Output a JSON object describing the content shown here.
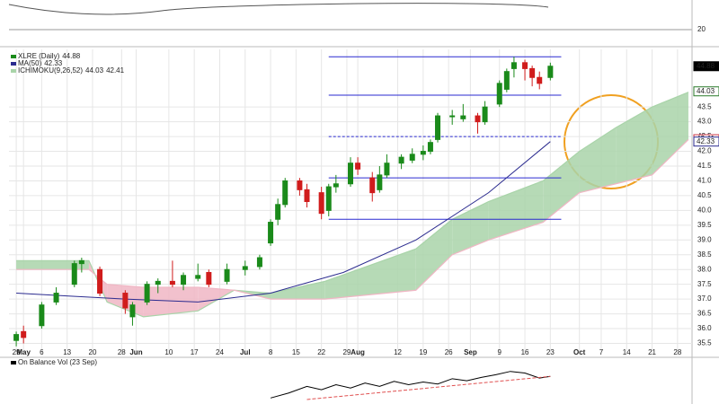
{
  "chart_data": {
    "type": "candlestick",
    "legend": {
      "symbol": "XLRE (Daily)",
      "last": 44.88,
      "ma_name": "MA(50)",
      "ma_last": 42.33,
      "ichimoku_name": "ICHIMOKU(9,26,52)",
      "ichimoku_a": 44.03,
      "ichimoku_b": 42.41
    },
    "xlim": [
      -2,
      186
    ],
    "xticks": [
      {
        "value": 0,
        "label": "29"
      },
      {
        "value": 2,
        "label": "May"
      },
      {
        "value": 7,
        "label": "6"
      },
      {
        "value": 14,
        "label": "13"
      },
      {
        "value": 21,
        "label": "20"
      },
      {
        "value": 29,
        "label": "28"
      },
      {
        "value": 33,
        "label": "Jun"
      },
      {
        "value": 42,
        "label": "10"
      },
      {
        "value": 49,
        "label": "17"
      },
      {
        "value": 56,
        "label": "24"
      },
      {
        "value": 63,
        "label": "Jul"
      },
      {
        "value": 70,
        "label": "8"
      },
      {
        "value": 77,
        "label": "15"
      },
      {
        "value": 84,
        "label": "22"
      },
      {
        "value": 91,
        "label": "29"
      },
      {
        "value": 94,
        "label": "Aug"
      },
      {
        "value": 105,
        "label": "12"
      },
      {
        "value": 112,
        "label": "19"
      },
      {
        "value": 119,
        "label": "26"
      },
      {
        "value": 125,
        "label": "Sep"
      },
      {
        "value": 133,
        "label": "9"
      },
      {
        "value": 140,
        "label": "16"
      },
      {
        "value": 147,
        "label": "23"
      },
      {
        "value": 155,
        "label": "Oct"
      },
      {
        "value": 161,
        "label": "7"
      },
      {
        "value": 168,
        "label": "14"
      },
      {
        "value": 175,
        "label": "21"
      },
      {
        "value": 182,
        "label": "28"
      }
    ],
    "ylim": [
      35.12,
      45.45
    ],
    "yticks": [
      {
        "value": 35.5,
        "label": "35.5"
      },
      {
        "value": 36,
        "label": "36.0"
      },
      {
        "value": 36.5,
        "label": "36.5"
      },
      {
        "value": 37,
        "label": "37.0"
      },
      {
        "value": 37.5,
        "label": "37.5"
      },
      {
        "value": 38,
        "label": "38.0"
      },
      {
        "value": 38.5,
        "label": "38.5"
      },
      {
        "value": 39,
        "label": "39.0"
      },
      {
        "value": 39.5,
        "label": "39.5"
      },
      {
        "value": 40,
        "label": "40.0"
      },
      {
        "value": 40.5,
        "label": "40.5"
      },
      {
        "value": 41,
        "label": "41.0"
      },
      {
        "value": 41.5,
        "label": "41.5"
      },
      {
        "value": 42,
        "label": "42.0"
      },
      {
        "value": 42.5,
        "label": "42.5"
      },
      {
        "value": 43,
        "label": "43.0"
      },
      {
        "value": 43.5,
        "label": "43.5"
      }
    ],
    "up_color": "#1a8a1a",
    "down_color": "#d01c1c",
    "candles": {
      "x": [
        0,
        2,
        7,
        11,
        16,
        18,
        23,
        30,
        32,
        36,
        39,
        43,
        46,
        50,
        53,
        58,
        63,
        67,
        70,
        72,
        74,
        78,
        80,
        84,
        86,
        88,
        92,
        94,
        98,
        100,
        102,
        106,
        109,
        112,
        114,
        116,
        120,
        123,
        127,
        129,
        133,
        135,
        137,
        140,
        142,
        144,
        147
      ],
      "open": [
        35.6,
        35.9,
        36.1,
        36.9,
        37.5,
        38.2,
        38.0,
        37.2,
        36.4,
        36.9,
        37.5,
        37.6,
        37.5,
        37.7,
        37.9,
        37.6,
        38.0,
        38.1,
        38.9,
        39.7,
        40.2,
        41.0,
        40.7,
        40.6,
        40.0,
        40.8,
        40.9,
        41.6,
        41.1,
        40.7,
        41.2,
        41.6,
        41.7,
        41.9,
        42.0,
        42.4,
        43.2,
        43.1,
        43.2,
        43.0,
        43.6,
        44.1,
        44.8,
        45.0,
        44.8,
        44.5,
        44.5
      ],
      "high": [
        35.9,
        36.1,
        36.9,
        37.4,
        38.3,
        38.4,
        38.1,
        37.3,
        36.9,
        37.6,
        37.7,
        38.3,
        37.9,
        38.2,
        38.0,
        38.2,
        38.3,
        38.5,
        39.7,
        40.4,
        41.1,
        41.1,
        40.9,
        40.8,
        40.9,
        41.2,
        41.8,
        41.8,
        41.3,
        41.5,
        41.9,
        41.9,
        42.1,
        42.2,
        42.4,
        43.3,
        43.4,
        43.6,
        43.3,
        43.7,
        44.4,
        44.8,
        45.2,
        45.1,
        44.9,
        44.7,
        45.0
      ],
      "low": [
        35.4,
        35.5,
        36.0,
        36.8,
        37.4,
        37.9,
        37.1,
        36.5,
        36.1,
        36.8,
        37.2,
        37.4,
        37.3,
        37.6,
        37.4,
        37.5,
        37.8,
        38.0,
        38.8,
        39.5,
        40.1,
        40.5,
        40.1,
        39.7,
        39.8,
        40.6,
        40.8,
        41.2,
        40.3,
        40.6,
        41.1,
        41.4,
        41.6,
        41.7,
        41.9,
        42.3,
        42.9,
        43.0,
        42.6,
        42.9,
        43.5,
        44.0,
        44.5,
        44.4,
        44.2,
        44.1,
        44.4
      ],
      "close": [
        35.8,
        35.7,
        36.8,
        37.2,
        38.2,
        38.3,
        37.2,
        36.7,
        36.8,
        37.5,
        37.6,
        37.5,
        37.8,
        37.8,
        37.5,
        38.0,
        38.1,
        38.4,
        39.6,
        40.2,
        41.0,
        40.7,
        40.3,
        39.9,
        40.8,
        40.9,
        41.6,
        41.4,
        40.6,
        41.2,
        41.6,
        41.8,
        41.9,
        42.0,
        42.3,
        43.2,
        43.2,
        43.2,
        43.0,
        43.5,
        44.3,
        44.7,
        45.0,
        44.8,
        44.5,
        44.3,
        44.88
      ]
    },
    "ma": {
      "color": "#2b2b8f",
      "x": [
        0,
        15,
        30,
        50,
        70,
        90,
        110,
        130,
        147
      ],
      "values": [
        37.2,
        37.1,
        37.0,
        36.9,
        37.2,
        37.9,
        39.0,
        40.6,
        42.33
      ]
    },
    "cloud": {
      "up_color": "#a9d4a9",
      "down_color": "#f0b6c4",
      "x": [
        0,
        20,
        25,
        35,
        50,
        60,
        70,
        85,
        110,
        120,
        130,
        145,
        155,
        165,
        175,
        185
      ],
      "span_a": [
        38.3,
        38.3,
        36.9,
        36.4,
        36.6,
        37.3,
        37.2,
        37.6,
        38.7,
        39.7,
        40.3,
        41.0,
        42.0,
        42.8,
        43.5,
        44.0
      ],
      "span_b": [
        38.0,
        38.0,
        37.5,
        37.4,
        37.4,
        37.3,
        37.0,
        37.0,
        37.3,
        38.5,
        39.0,
        39.6,
        40.6,
        40.9,
        41.2,
        42.4
      ]
    },
    "levels": {
      "color": "#2a2ad0",
      "x_range": [
        86,
        150
      ],
      "values": [
        45.2,
        43.9,
        42.5,
        41.1,
        39.7
      ],
      "dashed": [
        false,
        false,
        true,
        false,
        false
      ]
    },
    "price_labels": [
      44.88,
      44.03,
      42.41,
      42.33
    ],
    "top_panel": {
      "tick": 20
    },
    "obv": {
      "label": "On Balance Vol (23 Sep)",
      "ylim": [
        0,
        100
      ],
      "x": [
        70,
        75,
        80,
        84,
        88,
        92,
        96,
        100,
        104,
        108,
        112,
        116,
        120,
        124,
        128,
        132,
        136,
        140,
        144,
        147
      ],
      "values": [
        10,
        25,
        45,
        35,
        50,
        40,
        55,
        45,
        60,
        50,
        58,
        52,
        68,
        62,
        72,
        80,
        90,
        85,
        70,
        75
      ]
    }
  }
}
